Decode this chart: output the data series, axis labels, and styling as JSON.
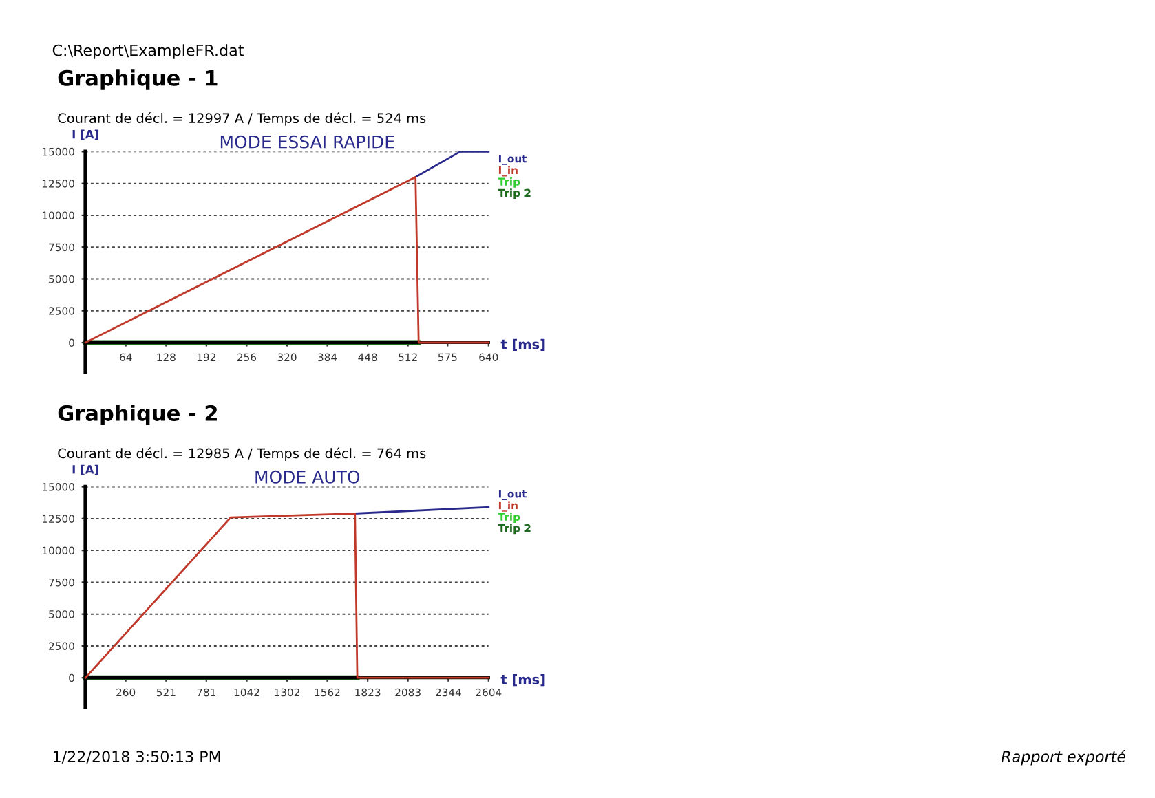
{
  "chart_data": [
    {
      "type": "line",
      "title": "Graphique - 1",
      "subtitle": "Courant de décl. = 12997 A / Temps de décl. = 524 ms",
      "xlabel": "t [ms]",
      "ylabel": "I [A]",
      "annotations": [
        "MODE ESSAI RAPIDE",
        "C:\\Report\\ExampleFR.dat"
      ],
      "series": [
        {
          "name": "I_out",
          "color": "#2a2a8c",
          "x": [
            524,
            595,
            640
          ],
          "values": [
            13000,
            15000,
            15000
          ]
        },
        {
          "name": "I_in",
          "color": "#c0392b",
          "x": [
            0,
            524,
            529,
            640
          ],
          "values": [
            0,
            13000,
            0,
            0
          ]
        },
        {
          "name": "Trip",
          "color": "#33cc33"
        },
        {
          "name": "Trip 2",
          "color": "#1e6b1e",
          "x": [
            0,
            529
          ],
          "values": [
            0,
            0
          ]
        }
      ],
      "xlim": [
        0,
        640
      ],
      "xticks": [
        64,
        128,
        192,
        256,
        320,
        384,
        448,
        512,
        575,
        640
      ],
      "ylim": [
        -2300,
        15000
      ],
      "yticks": [
        0,
        2500,
        5000,
        7500,
        10000,
        12500,
        15000
      ],
      "grid": "y",
      "legend": "right",
      "marker": "none",
      "line_style": "solid"
    },
    {
      "type": "line",
      "title": "Graphique - 2",
      "subtitle": "Courant de décl. = 12985 A / Temps de décl. = 764 ms",
      "xlabel": "t [ms]",
      "ylabel": "I [A]",
      "annotations": [
        "MODE AUTO",
        "1/22/2018 3:50:13 PM",
        "Rapport exporté"
      ],
      "series": [
        {
          "name": "I_out",
          "color": "#2a2a8c",
          "x": [
            1741,
            2604
          ],
          "values": [
            12900,
            13400
          ]
        },
        {
          "name": "I_in",
          "color": "#c0392b",
          "x": [
            0,
            939,
            1741,
            1756,
            2604
          ],
          "values": [
            0,
            12600,
            12900,
            0,
            0
          ]
        },
        {
          "name": "Trip",
          "color": "#33cc33"
        },
        {
          "name": "Trip 2",
          "color": "#1e6b1e",
          "x": [
            0,
            1756
          ],
          "values": [
            0,
            0
          ]
        }
      ],
      "xlim": [
        0,
        2604
      ],
      "xticks": [
        260,
        521,
        781,
        1042,
        1302,
        1562,
        1823,
        2083,
        2344,
        2604
      ],
      "ylim": [
        -2300,
        15000
      ],
      "yticks": [
        0,
        2500,
        5000,
        7500,
        10000,
        12500,
        15000
      ],
      "grid": "y",
      "legend": "right",
      "marker": "none",
      "line_style": "solid"
    }
  ]
}
